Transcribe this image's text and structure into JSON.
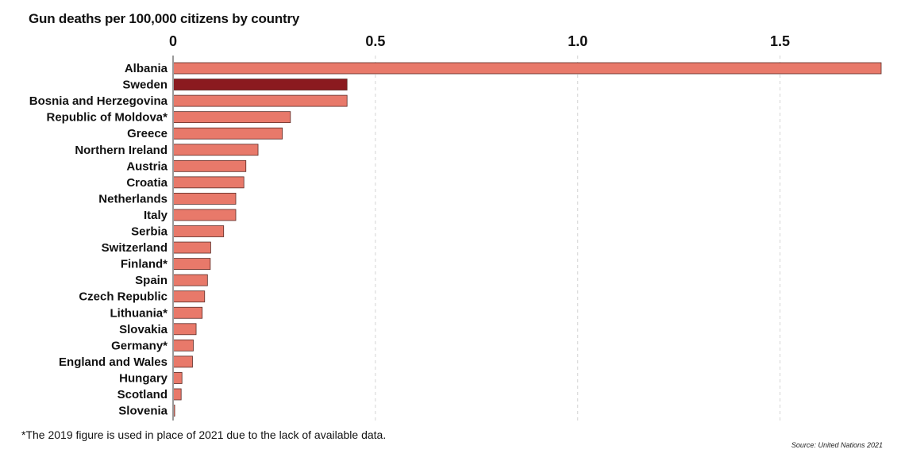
{
  "chart_data": {
    "type": "bar",
    "orientation": "horizontal",
    "title": "Gun deaths per 100,000 citizens by country",
    "xlabel": "",
    "ylabel": "",
    "xlim": [
      0,
      1.75
    ],
    "x_ticks": [
      0,
      0.5,
      1.0,
      1.5
    ],
    "x_tick_labels": [
      "0",
      "0.5",
      "1.0",
      "1.5"
    ],
    "x_axis_position": "top",
    "grid": "vertical dashed",
    "categories": [
      "Albania",
      "Sweden",
      "Bosnia and Herzegovina",
      "Republic of Moldova*",
      "Greece",
      "Northern Ireland",
      "Austria",
      "Croatia",
      "Netherlands",
      "Italy",
      "Serbia",
      "Switzerland",
      "Finland*",
      "Spain",
      "Czech Republic",
      "Lithuania*",
      "Slovakia",
      "Germany*",
      "England and Wales",
      "Hungary",
      "Scotland",
      "Slovenia"
    ],
    "values": [
      1.75,
      0.43,
      0.43,
      0.29,
      0.27,
      0.21,
      0.18,
      0.175,
      0.155,
      0.155,
      0.125,
      0.093,
      0.092,
      0.085,
      0.078,
      0.072,
      0.057,
      0.05,
      0.048,
      0.022,
      0.02,
      0.004
    ],
    "highlight_category": "Sweden",
    "colors": {
      "bar": "#E8796A",
      "highlight": "#8B1A1F",
      "bar_stroke": "#5a2a25",
      "grid": "#d4d4d4",
      "axis": "#9a9a9a"
    }
  },
  "footnote": "*The 2019 figure is used in place of 2021 due to the lack of available data.",
  "source": "Source: United Nations 2021"
}
